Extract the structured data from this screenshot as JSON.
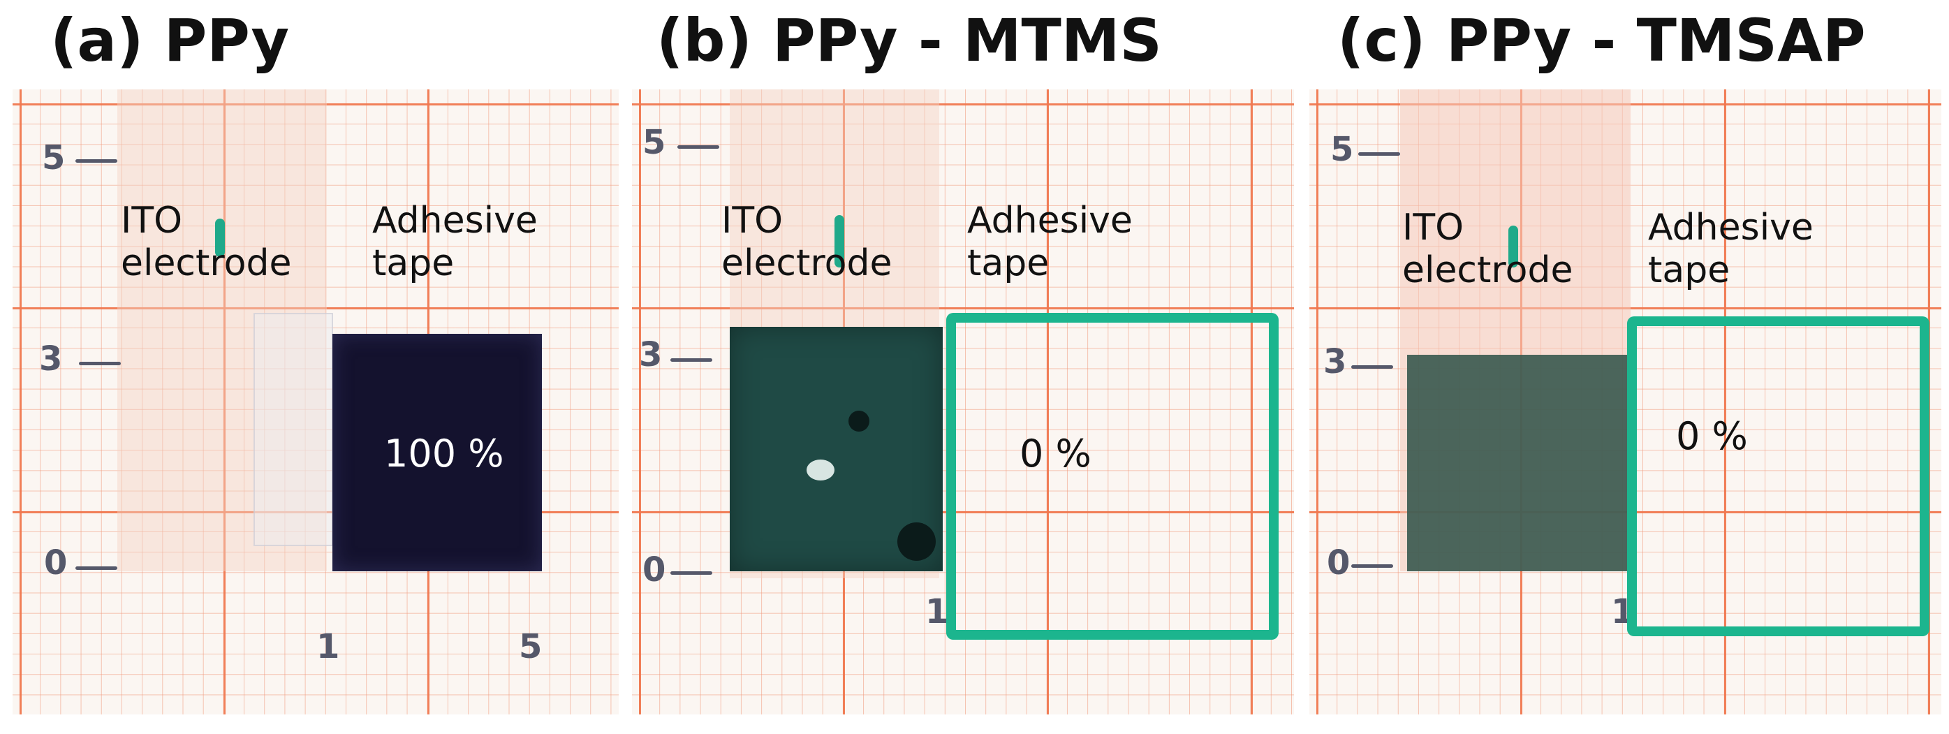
{
  "panels": [
    {
      "title": "(a) PPy",
      "ito_label_line1": "ITO",
      "ito_label_line2": "electrode",
      "tape_label_line1": "Adhesive",
      "tape_label_line2": "tape",
      "percent": "100 %",
      "ticks": [
        "5",
        "3",
        "0",
        "1",
        "5"
      ],
      "film_color": "#14122e"
    },
    {
      "title": "(b) PPy - MTMS",
      "ito_label_line1": "ITO",
      "ito_label_line2": "electrode",
      "tape_label_line1": "Adhesive",
      "tape_label_line2": "tape",
      "percent": "0 %",
      "ticks": [
        "5",
        "3",
        "0",
        "1"
      ],
      "film_color": "#1f4a45"
    },
    {
      "title": "(c) PPy - TMSAP",
      "ito_label_line1": "ITO",
      "ito_label_line2": "electrode",
      "tape_label_line1": "Adhesive",
      "tape_label_line2": "tape",
      "percent": "0 %",
      "ticks": [
        "5",
        "3",
        "0",
        "1"
      ],
      "film_color": "#3c5a50"
    }
  ],
  "colors": {
    "grid_major": "#f0784f",
    "marker_green": "#1cb58e"
  }
}
